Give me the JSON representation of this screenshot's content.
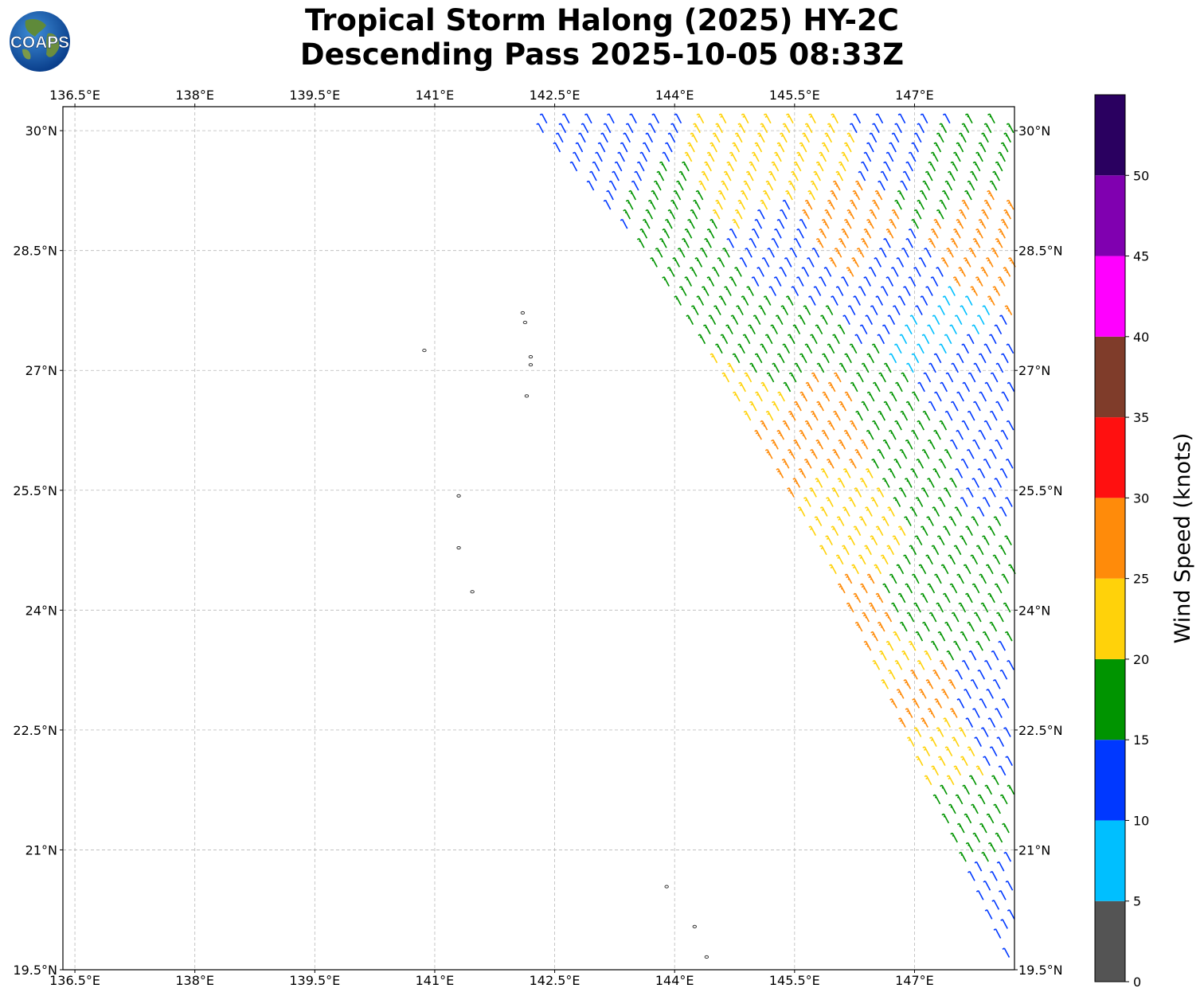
{
  "title": {
    "line1": "Tropical Storm Halong (2025) HY-2C",
    "line2": "Descending Pass 2025-10-05 08:33Z"
  },
  "logo": {
    "text": "COAPS",
    "icon": "globe-logo-icon"
  },
  "chart_data": {
    "type": "wind-barb-map",
    "lon_ticks": [
      "136.5°E",
      "138°E",
      "139.5°E",
      "141°E",
      "142.5°E",
      "144°E",
      "145.5°E",
      "147°E"
    ],
    "lon_values": [
      136.5,
      138,
      139.5,
      141,
      142.5,
      144,
      145.5,
      147
    ],
    "lat_ticks": [
      "30°N",
      "28.5°N",
      "27°N",
      "25.5°N",
      "24°N",
      "22.5°N",
      "21°N",
      "19.5°N"
    ],
    "lat_values": [
      30,
      28.5,
      27,
      25.5,
      24,
      22.5,
      21,
      19.5
    ],
    "lon_range": [
      136.35,
      148.25
    ],
    "lat_range": [
      19.5,
      30.3
    ],
    "grid": true,
    "swath_edge_lon_lat": [
      [
        142.2,
        30.2
      ],
      [
        143.6,
        28.6
      ],
      [
        144.6,
        27.0
      ],
      [
        145.9,
        24.7
      ],
      [
        148.2,
        19.6
      ]
    ],
    "colorbar": {
      "label": "Wind Speed (knots)",
      "ticks": [
        "0",
        "5",
        "10",
        "15",
        "20",
        "25",
        "30",
        "35",
        "40",
        "45",
        "50"
      ],
      "bins": [
        {
          "min": 0,
          "max": 5,
          "color": "#545454"
        },
        {
          "min": 5,
          "max": 10,
          "color": "#00bfff"
        },
        {
          "min": 10,
          "max": 15,
          "color": "#0038ff"
        },
        {
          "min": 15,
          "max": 20,
          "color": "#009400"
        },
        {
          "min": 20,
          "max": 25,
          "color": "#ffd20a"
        },
        {
          "min": 25,
          "max": 30,
          "color": "#ff8b0a"
        },
        {
          "min": 30,
          "max": 35,
          "color": "#ff1010"
        },
        {
          "min": 35,
          "max": 40,
          "color": "#7f3c2a"
        },
        {
          "min": 40,
          "max": 45,
          "color": "#ff00ff"
        },
        {
          "min": 45,
          "max": 50,
          "color": "#8000b0"
        },
        {
          "min": 50,
          "max": 55,
          "color": "#2a0060"
        }
      ]
    },
    "wind_regions": [
      {
        "lon": 143.2,
        "lat": 29.6,
        "speed": 12
      },
      {
        "lon": 143.0,
        "lat": 28.8,
        "speed": 12
      },
      {
        "lon": 143.8,
        "lat": 29.0,
        "speed": 17
      },
      {
        "lon": 144.3,
        "lat": 28.0,
        "speed": 17
      },
      {
        "lon": 144.8,
        "lat": 29.5,
        "speed": 22
      },
      {
        "lon": 145.3,
        "lat": 28.6,
        "speed": 12
      },
      {
        "lon": 145.7,
        "lat": 29.6,
        "speed": 22
      },
      {
        "lon": 146.0,
        "lat": 29.0,
        "speed": 26
      },
      {
        "lon": 146.8,
        "lat": 29.8,
        "speed": 12
      },
      {
        "lon": 147.3,
        "lat": 29.5,
        "speed": 17
      },
      {
        "lon": 147.8,
        "lat": 28.7,
        "speed": 27
      },
      {
        "lon": 146.9,
        "lat": 28.0,
        "speed": 12
      },
      {
        "lon": 147.2,
        "lat": 27.6,
        "speed": 8
      },
      {
        "lon": 147.6,
        "lat": 27.0,
        "speed": 12
      },
      {
        "lon": 145.2,
        "lat": 27.3,
        "speed": 17
      },
      {
        "lon": 144.8,
        "lat": 26.6,
        "speed": 22
      },
      {
        "lon": 145.0,
        "lat": 26.1,
        "speed": 27
      },
      {
        "lon": 146.0,
        "lat": 26.4,
        "speed": 27
      },
      {
        "lon": 146.5,
        "lat": 26.6,
        "speed": 17
      },
      {
        "lon": 146.1,
        "lat": 25.2,
        "speed": 22
      },
      {
        "lon": 147.1,
        "lat": 25.8,
        "speed": 17
      },
      {
        "lon": 147.8,
        "lat": 25.9,
        "speed": 12
      },
      {
        "lon": 146.2,
        "lat": 23.8,
        "speed": 27
      },
      {
        "lon": 146.6,
        "lat": 23.2,
        "speed": 22
      },
      {
        "lon": 146.9,
        "lat": 22.9,
        "speed": 27
      },
      {
        "lon": 147.2,
        "lat": 24.2,
        "speed": 17
      },
      {
        "lon": 147.8,
        "lat": 24.5,
        "speed": 17
      },
      {
        "lon": 147.2,
        "lat": 22.2,
        "speed": 22
      },
      {
        "lon": 147.5,
        "lat": 21.5,
        "speed": 17
      },
      {
        "lon": 147.9,
        "lat": 20.3,
        "speed": 12
      },
      {
        "lon": 148.1,
        "lat": 22.8,
        "speed": 12
      }
    ],
    "islands_lon_lat": [
      [
        140.87,
        27.25
      ],
      [
        142.1,
        27.72
      ],
      [
        142.13,
        27.6
      ],
      [
        142.2,
        27.17
      ],
      [
        142.2,
        27.07
      ],
      [
        142.15,
        26.68
      ],
      [
        141.3,
        25.43
      ],
      [
        141.3,
        24.78
      ],
      [
        141.47,
        24.23
      ],
      [
        143.9,
        20.54
      ],
      [
        144.25,
        20.04
      ],
      [
        144.4,
        19.66
      ]
    ]
  }
}
